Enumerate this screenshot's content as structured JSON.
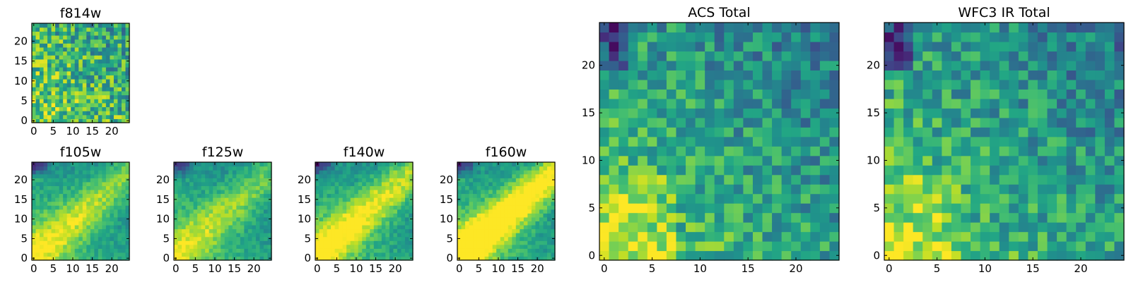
{
  "chart_data": [
    {
      "type": "heatmap",
      "title": "f814w",
      "xlabel": "",
      "ylabel": "",
      "xlim": [
        0,
        25
      ],
      "ylim": [
        0,
        25
      ],
      "xticks": [
        "0",
        "5",
        "10",
        "15",
        "20"
      ],
      "yticks": [
        "0",
        "5",
        "10",
        "15",
        "20"
      ],
      "colormap": "viridis",
      "grid": false,
      "pixel_values": "25x25 map; higher values toward lower-left, noisy"
    },
    {
      "type": "heatmap",
      "title": "f105w",
      "xlabel": "",
      "ylabel": "",
      "xlim": [
        0,
        25
      ],
      "ylim": [
        0,
        25
      ],
      "xticks": [
        "0",
        "5",
        "10",
        "15",
        "20"
      ],
      "yticks": [
        "0",
        "5",
        "10",
        "15",
        "20"
      ],
      "colormap": "viridis",
      "grid": false,
      "pixel_values": "25x25 map; smooth gradient, brightest lower-left, dark band top-left"
    },
    {
      "type": "heatmap",
      "title": "f125w",
      "xlabel": "",
      "ylabel": "",
      "xlim": [
        0,
        25
      ],
      "ylim": [
        0,
        25
      ],
      "xticks": [
        "0",
        "5",
        "10",
        "15",
        "20"
      ],
      "yticks": [
        "0",
        "5",
        "10",
        "15",
        "20"
      ],
      "colormap": "viridis",
      "grid": false,
      "pixel_values": "25x25 map; smooth gradient, brightest lower-left"
    },
    {
      "type": "heatmap",
      "title": "f140w",
      "xlabel": "",
      "ylabel": "",
      "xlim": [
        0,
        25
      ],
      "ylim": [
        0,
        25
      ],
      "xticks": [
        "0",
        "5",
        "10",
        "15",
        "20"
      ],
      "yticks": [
        "0",
        "5",
        "10",
        "15",
        "20"
      ],
      "colormap": "viridis",
      "grid": false,
      "pixel_values": "25x25 map; diagonal bright band from lower-left"
    },
    {
      "type": "heatmap",
      "title": "f160w",
      "xlabel": "",
      "ylabel": "",
      "xlim": [
        0,
        25
      ],
      "ylim": [
        0,
        25
      ],
      "xticks": [
        "0",
        "5",
        "10",
        "15",
        "20"
      ],
      "yticks": [
        "0",
        "5",
        "10",
        "15",
        "20"
      ],
      "colormap": "viridis",
      "grid": false,
      "pixel_values": "25x25 map; strong diagonal bright band from lower-left"
    },
    {
      "type": "heatmap",
      "title": "ACS Total",
      "xlabel": "",
      "ylabel": "",
      "xlim": [
        0,
        25
      ],
      "ylim": [
        0,
        25
      ],
      "xticks": [
        "0",
        "5",
        "10",
        "15",
        "20"
      ],
      "yticks": [
        "0",
        "5",
        "10",
        "15",
        "20"
      ],
      "colormap": "viridis",
      "grid": false,
      "pixel_values": "25x25 map; bright lower-left, darker upper-left corner"
    },
    {
      "type": "heatmap",
      "title": "WFC3 IR Total",
      "xlabel": "",
      "ylabel": "",
      "xlim": [
        0,
        25
      ],
      "ylim": [
        0,
        25
      ],
      "xticks": [
        "0",
        "5",
        "10",
        "15",
        "20"
      ],
      "yticks": [
        "0",
        "5",
        "10",
        "15",
        "20"
      ],
      "colormap": "viridis",
      "grid": false,
      "pixel_values": "25x25 map; bright lower-left, darker upper-left corner"
    }
  ]
}
